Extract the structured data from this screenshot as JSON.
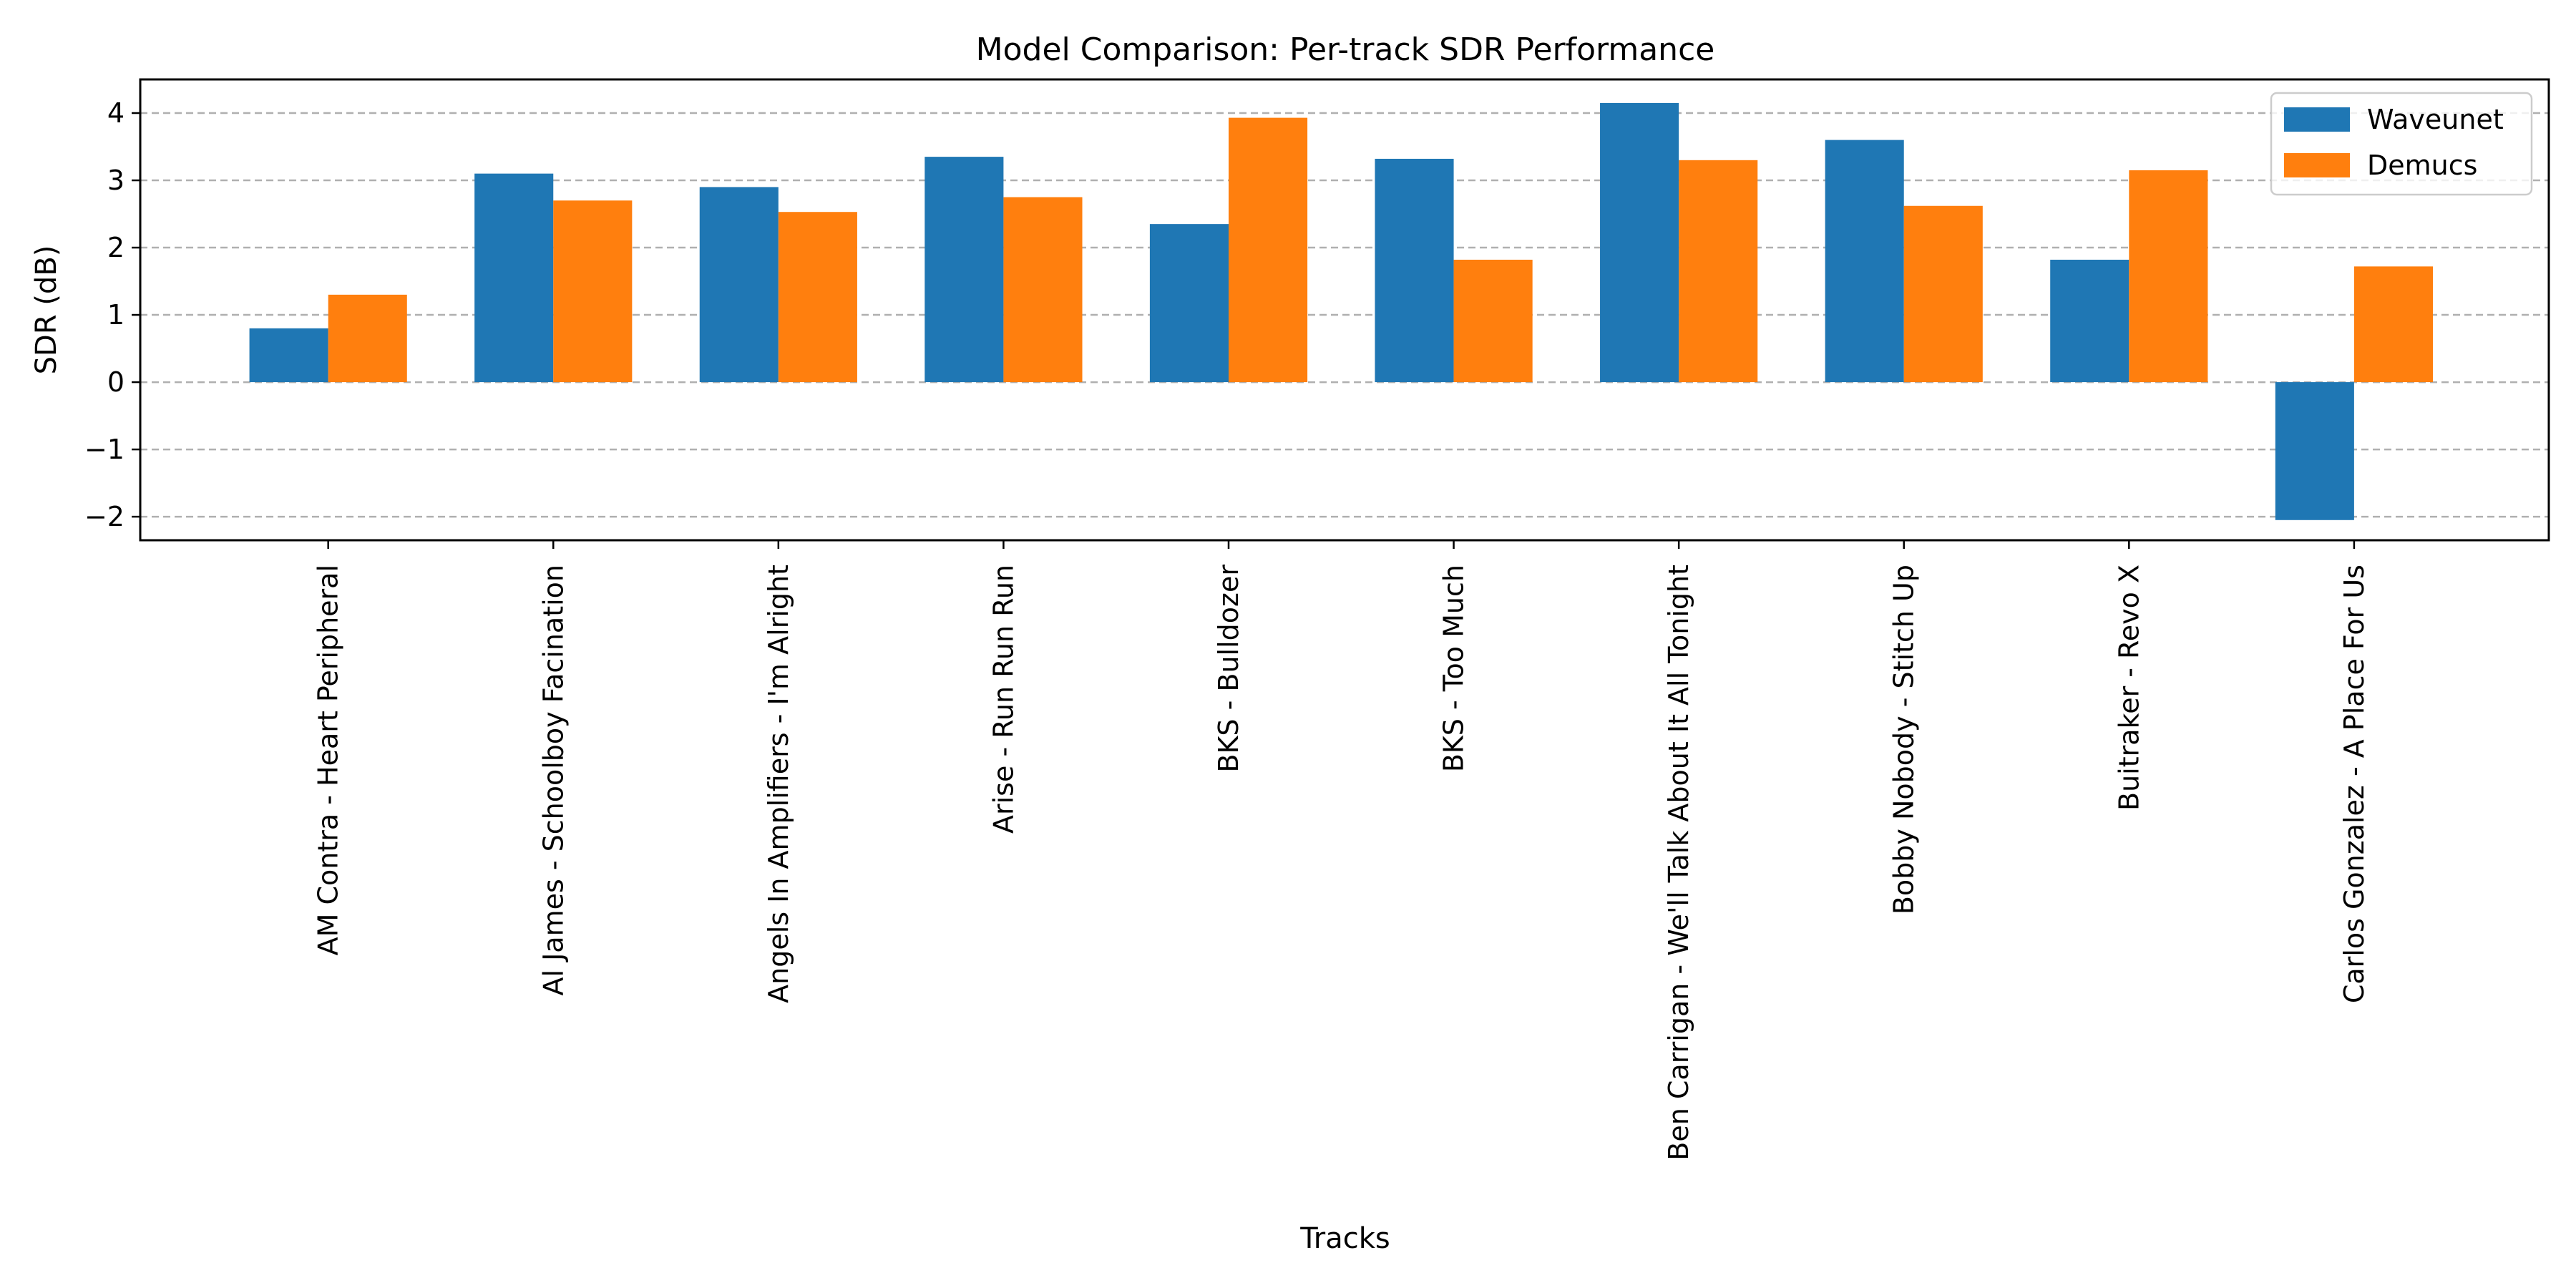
{
  "chart_data": {
    "type": "bar",
    "title": "Model Comparison: Per-track SDR Performance",
    "xlabel": "Tracks",
    "ylabel": "SDR (dB)",
    "ylim": [
      -2.35,
      4.5
    ],
    "yticks": [
      -2,
      -1,
      0,
      1,
      2,
      3,
      4
    ],
    "grid": "y, dashed",
    "legend_position": "top-right",
    "categories": [
      "AM Contra - Heart Peripheral",
      "Al James - Schoolboy Facination",
      "Angels In Amplifiers - I'm Alright",
      "Arise - Run Run Run",
      "BKS - Bulldozer",
      "BKS - Too Much",
      "Ben Carrigan - We'll Talk About It All Tonight",
      "Bobby Nobody - Stitch Up",
      "Buitraker - Revo X",
      "Carlos Gonzalez - A Place For Us"
    ],
    "series": [
      {
        "name": "Waveunet",
        "color": "#1f77b4",
        "values": [
          0.8,
          3.1,
          2.9,
          3.35,
          2.35,
          3.32,
          4.15,
          3.6,
          1.82,
          -2.05
        ]
      },
      {
        "name": "Demucs",
        "color": "#ff7f0e",
        "values": [
          1.3,
          2.7,
          2.53,
          2.75,
          3.93,
          1.82,
          3.3,
          2.62,
          3.15,
          1.72
        ]
      }
    ]
  }
}
